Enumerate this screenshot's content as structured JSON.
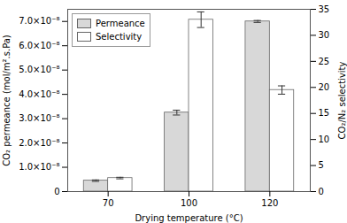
{
  "chart_data": {
    "type": "bar",
    "x_label": "Drying temperature (°C)",
    "y_label": "CO₂ permeance (mol/m².s.Pa)",
    "y2_label": "CO₂/N₂ selectivity",
    "categories": [
      "70",
      "100",
      "120"
    ],
    "series": [
      {
        "name": "Permeance",
        "color": "#d8d8d8",
        "values": [
          4.5e-09,
          3.25e-08,
          7e-08
        ],
        "errors": [
          3e-10,
          1e-09,
          4e-10
        ]
      },
      {
        "name": "Selectivity",
        "color": "#ffffff",
        "values": [
          2.6,
          33.0,
          19.5
        ],
        "errors": [
          0.15,
          1.5,
          0.8
        ],
        "axis": "y2"
      }
    ],
    "ylim": [
      0,
      7.5e-08
    ],
    "yticks": [
      0,
      {
        "value": 1e-08,
        "label": "1.0×10⁻⁸"
      },
      {
        "value": 2e-08,
        "label": "2.0×10⁻⁸"
      },
      {
        "value": 3e-08,
        "label": "3.0×10⁻⁸"
      },
      {
        "value": 4e-08,
        "label": "4.0×10⁻⁸"
      },
      {
        "value": 5e-08,
        "label": "5.0×10⁻⁸"
      },
      {
        "value": 6e-08,
        "label": "6.0×10⁻⁸"
      },
      {
        "value": 7e-08,
        "label": "7.0×10⁻⁸"
      }
    ],
    "y2lim": [
      0,
      35
    ],
    "y2ticks": [
      0,
      5,
      10,
      15,
      20,
      25,
      30,
      35
    ],
    "legend": "upper left",
    "grid": false
  }
}
